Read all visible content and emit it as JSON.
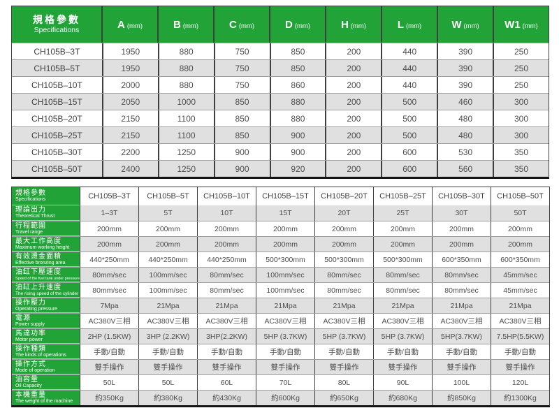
{
  "colors": {
    "green": "#21a338",
    "row_alt": "#e0e0e0",
    "border_dark": "#3f3f3f",
    "border_light": "#9f9f9f",
    "text": "#4d4d4d",
    "header_text": "#ffffff"
  },
  "top_table": {
    "header": {
      "title_zh": "規格參數",
      "title_en": "Specifications",
      "unit": "(mm)",
      "columns": [
        "A",
        "B",
        "C",
        "D",
        "H",
        "L",
        "W",
        "W1"
      ]
    },
    "rows": [
      {
        "model": "CH105B–3T",
        "values": [
          "1950",
          "880",
          "750",
          "850",
          "200",
          "440",
          "390",
          "250"
        ]
      },
      {
        "model": "CH105B–5T",
        "values": [
          "1950",
          "880",
          "750",
          "850",
          "200",
          "440",
          "390",
          "250"
        ]
      },
      {
        "model": "CH105B–10T",
        "values": [
          "2000",
          "880",
          "750",
          "860",
          "200",
          "440",
          "390",
          "250"
        ]
      },
      {
        "model": "CH105B–15T",
        "values": [
          "2050",
          "1000",
          "850",
          "880",
          "200",
          "500",
          "460",
          "300"
        ]
      },
      {
        "model": "CH105B–20T",
        "values": [
          "2150",
          "1100",
          "850",
          "880",
          "200",
          "500",
          "480",
          "300"
        ]
      },
      {
        "model": "CH105B–25T",
        "values": [
          "2150",
          "1100",
          "850",
          "900",
          "200",
          "500",
          "480",
          "300"
        ]
      },
      {
        "model": "CH105B–30T",
        "values": [
          "2200",
          "1250",
          "900",
          "900",
          "200",
          "600",
          "530",
          "350"
        ]
      },
      {
        "model": "CH105B–50T",
        "values": [
          "2400",
          "1250",
          "900",
          "920",
          "200",
          "600",
          "560",
          "350"
        ]
      }
    ]
  },
  "bottom_table": {
    "header": {
      "label_zh": "規格參數",
      "label_en": "Specifications",
      "models": [
        "CH105B–3T",
        "CH105B–5T",
        "CH105B–10T",
        "CH105B–15T",
        "CH105B–20T",
        "CH105B–25T",
        "CH105B–30T",
        "CH105B–50T"
      ]
    },
    "rows": [
      {
        "zh": "理論出力",
        "en": "Theoretical Thrust",
        "values": [
          "1–3T",
          "5T",
          "10T",
          "15T",
          "20T",
          "25T",
          "30T",
          "50T"
        ]
      },
      {
        "zh": "行程範圍",
        "en": "Travel range",
        "values": [
          "200mm",
          "200mm",
          "200mm",
          "200mm",
          "200mm",
          "200mm",
          "200mm",
          "200mm"
        ]
      },
      {
        "zh": "最大工作高度",
        "en": "Maximum working height",
        "values": [
          "200mm",
          "200mm",
          "200mm",
          "200mm",
          "200mm",
          "200mm",
          "200mm",
          "200mm"
        ]
      },
      {
        "zh": "有效燙金面積",
        "en": "Effective bronzing area",
        "values": [
          "440*250mm",
          "440*250mm",
          "440*250mm",
          "500*300mm",
          "500*300mm",
          "500*300mm",
          "600*350mm",
          "600*350mm"
        ]
      },
      {
        "zh": "油缸下壓速度",
        "en": "Speed of the fuel tank under pressure",
        "values": [
          "80mm/sec",
          "100mm/sec",
          "80mm/sec",
          "100mm/sec",
          "80mm/sec",
          "80mm/sec",
          "80mm/sec",
          "45mm/sec"
        ]
      },
      {
        "zh": "油缸上升速度",
        "en": "The rising speed of the cylinder",
        "values": [
          "80mm/sec",
          "100mm/sec",
          "80mm/sec",
          "100mm/sec",
          "80mm/sec",
          "80mm/sec",
          "80mm/sec",
          "45mm/sec"
        ]
      },
      {
        "zh": "操作壓力",
        "en": "Operating pressure",
        "values": [
          "7Mpa",
          "21Mpa",
          "21Mpa",
          "21Mpa",
          "21Mpa",
          "21Mpa",
          "21Mpa",
          "21Mpa"
        ]
      },
      {
        "zh": "電源",
        "en": "Power supply",
        "values": [
          "AC380V三相",
          "AC380V三相",
          "AC380V三相",
          "AC380V三相",
          "AC380V三相",
          "AC380V三相",
          "AC380V三相",
          "AC380V三相"
        ]
      },
      {
        "zh": "馬達功率",
        "en": "Motor power",
        "values": [
          "2HP (1.5KW)",
          "3HP (2.2KW)",
          "3HP(2.2KW)",
          "5HP (3.7KW)",
          "5HP (3.7KW)",
          "5HP (3.7KW)",
          "5HP(3.7KW)",
          "7.5HP(5.5KW)"
        ]
      },
      {
        "zh": "操作種類",
        "en": "The kinds of operations",
        "values": [
          "手動/自動",
          "手動/自動",
          "手動/自動",
          "手動/自動",
          "手動/自動",
          "手動/自動",
          "手動/自動",
          "手動/自動"
        ]
      },
      {
        "zh": "操作方式",
        "en": "Mode of operation",
        "values": [
          "雙手操作",
          "雙手操作",
          "雙手操作",
          "雙手操作",
          "雙手操作",
          "雙手操作",
          "雙手操作",
          "雙手操作"
        ]
      },
      {
        "zh": "油容量",
        "en": "Oil Capacity",
        "values": [
          "50L",
          "50L",
          "60L",
          "70L",
          "80L",
          "90L",
          "100L",
          "120L"
        ]
      },
      {
        "zh": "本機重量",
        "en": "The weight of the machine",
        "values": [
          "約350Kg",
          "約380Kg",
          "約430Kg",
          "約600Kg",
          "約650Kg",
          "約680Kg",
          "約850Kg",
          "約1300Kg"
        ]
      }
    ]
  }
}
